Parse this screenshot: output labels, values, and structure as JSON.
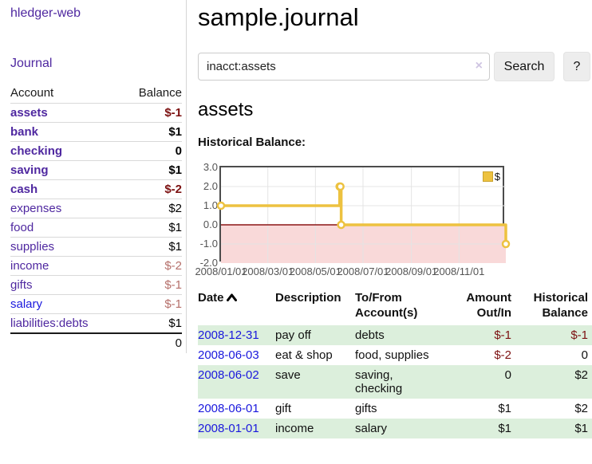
{
  "colors": {
    "accent_gold": "#edc240",
    "negative_fill": "#f9d9d9",
    "zero_line": "#8b1616",
    "grid": "#e4e4e4",
    "stripe_green": "#dcefdc",
    "link_purple": "#4f28a0",
    "link_blue": "#1a18dd",
    "negative_strong": "#7c1111",
    "negative_soft": "#b56f6a"
  },
  "sidebar": {
    "brand": "hledger-web",
    "nav_journal": "Journal",
    "account_header": "Account",
    "balance_header": "Balance",
    "accounts": [
      {
        "name": "assets",
        "balance": "$-1",
        "indent": 1,
        "bold": true,
        "neg": "strong",
        "link": "visited"
      },
      {
        "name": "bank",
        "balance": "$1",
        "indent": 2,
        "bold": true,
        "neg": "none",
        "link": "visited"
      },
      {
        "name": "checking",
        "balance": "0",
        "indent": 3,
        "bold": true,
        "neg": "none",
        "link": "visited"
      },
      {
        "name": "saving",
        "balance": "$1",
        "indent": 3,
        "bold": true,
        "neg": "none",
        "link": "visited"
      },
      {
        "name": "cash",
        "balance": "$-2",
        "indent": 2,
        "bold": true,
        "neg": "strong",
        "link": "visited"
      },
      {
        "name": "expenses",
        "balance": "$2",
        "indent": 1,
        "bold": false,
        "neg": "none",
        "link": "visited"
      },
      {
        "name": "food",
        "balance": "$1",
        "indent": 2,
        "bold": false,
        "neg": "none",
        "link": "visited"
      },
      {
        "name": "supplies",
        "balance": "$1",
        "indent": 2,
        "bold": false,
        "neg": "none",
        "link": "visited"
      },
      {
        "name": "income",
        "balance": "$-2",
        "indent": 1,
        "bold": false,
        "neg": "soft",
        "link": "visited"
      },
      {
        "name": "gifts",
        "balance": "$-1",
        "indent": 2,
        "bold": false,
        "neg": "soft",
        "link": "visited"
      },
      {
        "name": "salary",
        "balance": "$-1",
        "indent": 2,
        "bold": false,
        "neg": "soft",
        "link": "unvisited"
      },
      {
        "name": "liabilities:debts",
        "balance": "$1",
        "indent": 1,
        "bold": false,
        "neg": "none",
        "link": "visited"
      }
    ],
    "total": "0"
  },
  "main": {
    "title": "sample.journal",
    "search": {
      "value": "inacct:assets",
      "clear_icon": "×",
      "button": "Search",
      "help_button": "?"
    },
    "account_heading": "assets",
    "chart_label": "Historical Balance:"
  },
  "chart_data": {
    "type": "line",
    "title": "Historical Balance",
    "step": true,
    "legend": [
      {
        "label": "$",
        "color": "#edc240"
      }
    ],
    "legend_position": "top-right",
    "grid": true,
    "ylim": [
      -2,
      3
    ],
    "y_ticks": [
      "3.0",
      "2.0",
      "1.0",
      "0.0",
      "-1.0",
      "-2.0"
    ],
    "x_ticks": [
      "2008/01/01",
      "2008/03/01",
      "2008/05/01",
      "2008/07/01",
      "2008/09/01",
      "2008/11/01"
    ],
    "x_tick_days": [
      0,
      60,
      121,
      182,
      244,
      305
    ],
    "x_range_days": [
      0,
      365
    ],
    "points": [
      {
        "date": "2008-01-01",
        "day": 0,
        "value": 1
      },
      {
        "date": "2008-06-01",
        "day": 152,
        "value": 2
      },
      {
        "date": "2008-06-02",
        "day": 153,
        "value": 2
      },
      {
        "date": "2008-06-03",
        "day": 154,
        "value": 0
      },
      {
        "date": "2008-12-31",
        "day": 365,
        "value": -1
      }
    ],
    "negative_region_shaded": true,
    "zero_line": true
  },
  "register": {
    "headers": {
      "date": "Date",
      "description": "Description",
      "accounts": "To/From Account(s)",
      "amount": "Amount Out/In",
      "balance": "Historical Balance"
    },
    "sort": "date ascending",
    "rows": [
      {
        "date": "2008-12-31",
        "description": "pay off",
        "accounts": "debts",
        "amount": "$-1",
        "balance": "$-1",
        "amount_neg": true,
        "balance_neg": true
      },
      {
        "date": "2008-06-03",
        "description": "eat & shop",
        "accounts": "food, supplies",
        "amount": "$-2",
        "balance": "0",
        "amount_neg": true,
        "balance_neg": false
      },
      {
        "date": "2008-06-02",
        "description": "save",
        "accounts": "saving, checking",
        "amount": "0",
        "balance": "$2",
        "amount_neg": false,
        "balance_neg": false
      },
      {
        "date": "2008-06-01",
        "description": "gift",
        "accounts": "gifts",
        "amount": "$1",
        "balance": "$2",
        "amount_neg": false,
        "balance_neg": false
      },
      {
        "date": "2008-01-01",
        "description": "income",
        "accounts": "salary",
        "amount": "$1",
        "balance": "$1",
        "amount_neg": false,
        "balance_neg": false
      }
    ]
  }
}
